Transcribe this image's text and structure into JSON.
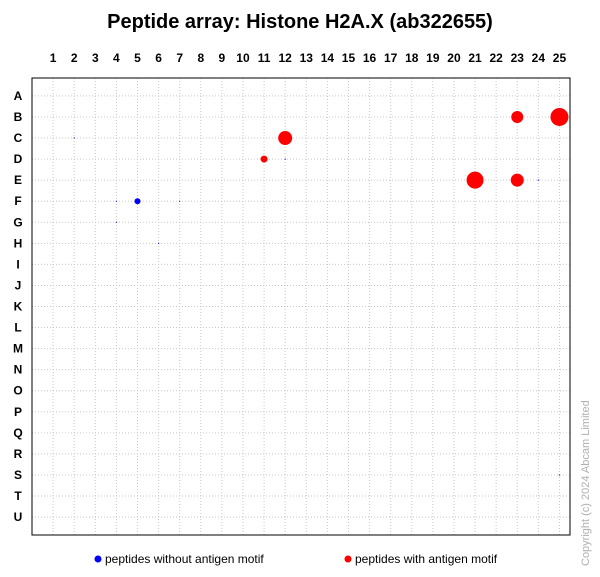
{
  "chart_data": {
    "type": "scatter",
    "title": "Peptide array:  Histone H2A.X (ab322655)",
    "x_categories": [
      "1",
      "2",
      "3",
      "4",
      "5",
      "6",
      "7",
      "8",
      "9",
      "10",
      "11",
      "12",
      "13",
      "14",
      "15",
      "16",
      "17",
      "18",
      "19",
      "20",
      "21",
      "22",
      "23",
      "24",
      "25"
    ],
    "y_categories": [
      "A",
      "B",
      "C",
      "D",
      "E",
      "F",
      "G",
      "H",
      "I",
      "J",
      "K",
      "L",
      "M",
      "N",
      "O",
      "P",
      "Q",
      "R",
      "S",
      "T",
      "U"
    ],
    "grid": true,
    "legend_position": "bottom",
    "series": [
      {
        "name": "peptides without antigen motif",
        "color": "#0000ff",
        "points": [
          {
            "col": 2,
            "row": "C",
            "value": 0.3
          },
          {
            "col": 12,
            "row": "D",
            "value": 0.5
          },
          {
            "col": 4,
            "row": "F",
            "value": 0.3
          },
          {
            "col": 5,
            "row": "F",
            "value": 3.0
          },
          {
            "col": 7,
            "row": "F",
            "value": 0.5
          },
          {
            "col": 4,
            "row": "G",
            "value": 0.4
          },
          {
            "col": 6,
            "row": "H",
            "value": 0.2
          },
          {
            "col": 24,
            "row": "E",
            "value": 0.3
          },
          {
            "col": 25,
            "row": "S",
            "value": 0.3
          }
        ]
      },
      {
        "name": "peptides with antigen motif",
        "color": "#ff0000",
        "points": [
          {
            "col": 23,
            "row": "B",
            "value": 6.0
          },
          {
            "col": 25,
            "row": "B",
            "value": 9.0
          },
          {
            "col": 12,
            "row": "C",
            "value": 7.0
          },
          {
            "col": 11,
            "row": "D",
            "value": 3.5
          },
          {
            "col": 21,
            "row": "E",
            "value": 8.5
          },
          {
            "col": 23,
            "row": "E",
            "value": 6.5
          }
        ]
      }
    ]
  },
  "copyright": "Copyright (c) 2024 Abcam Limited"
}
